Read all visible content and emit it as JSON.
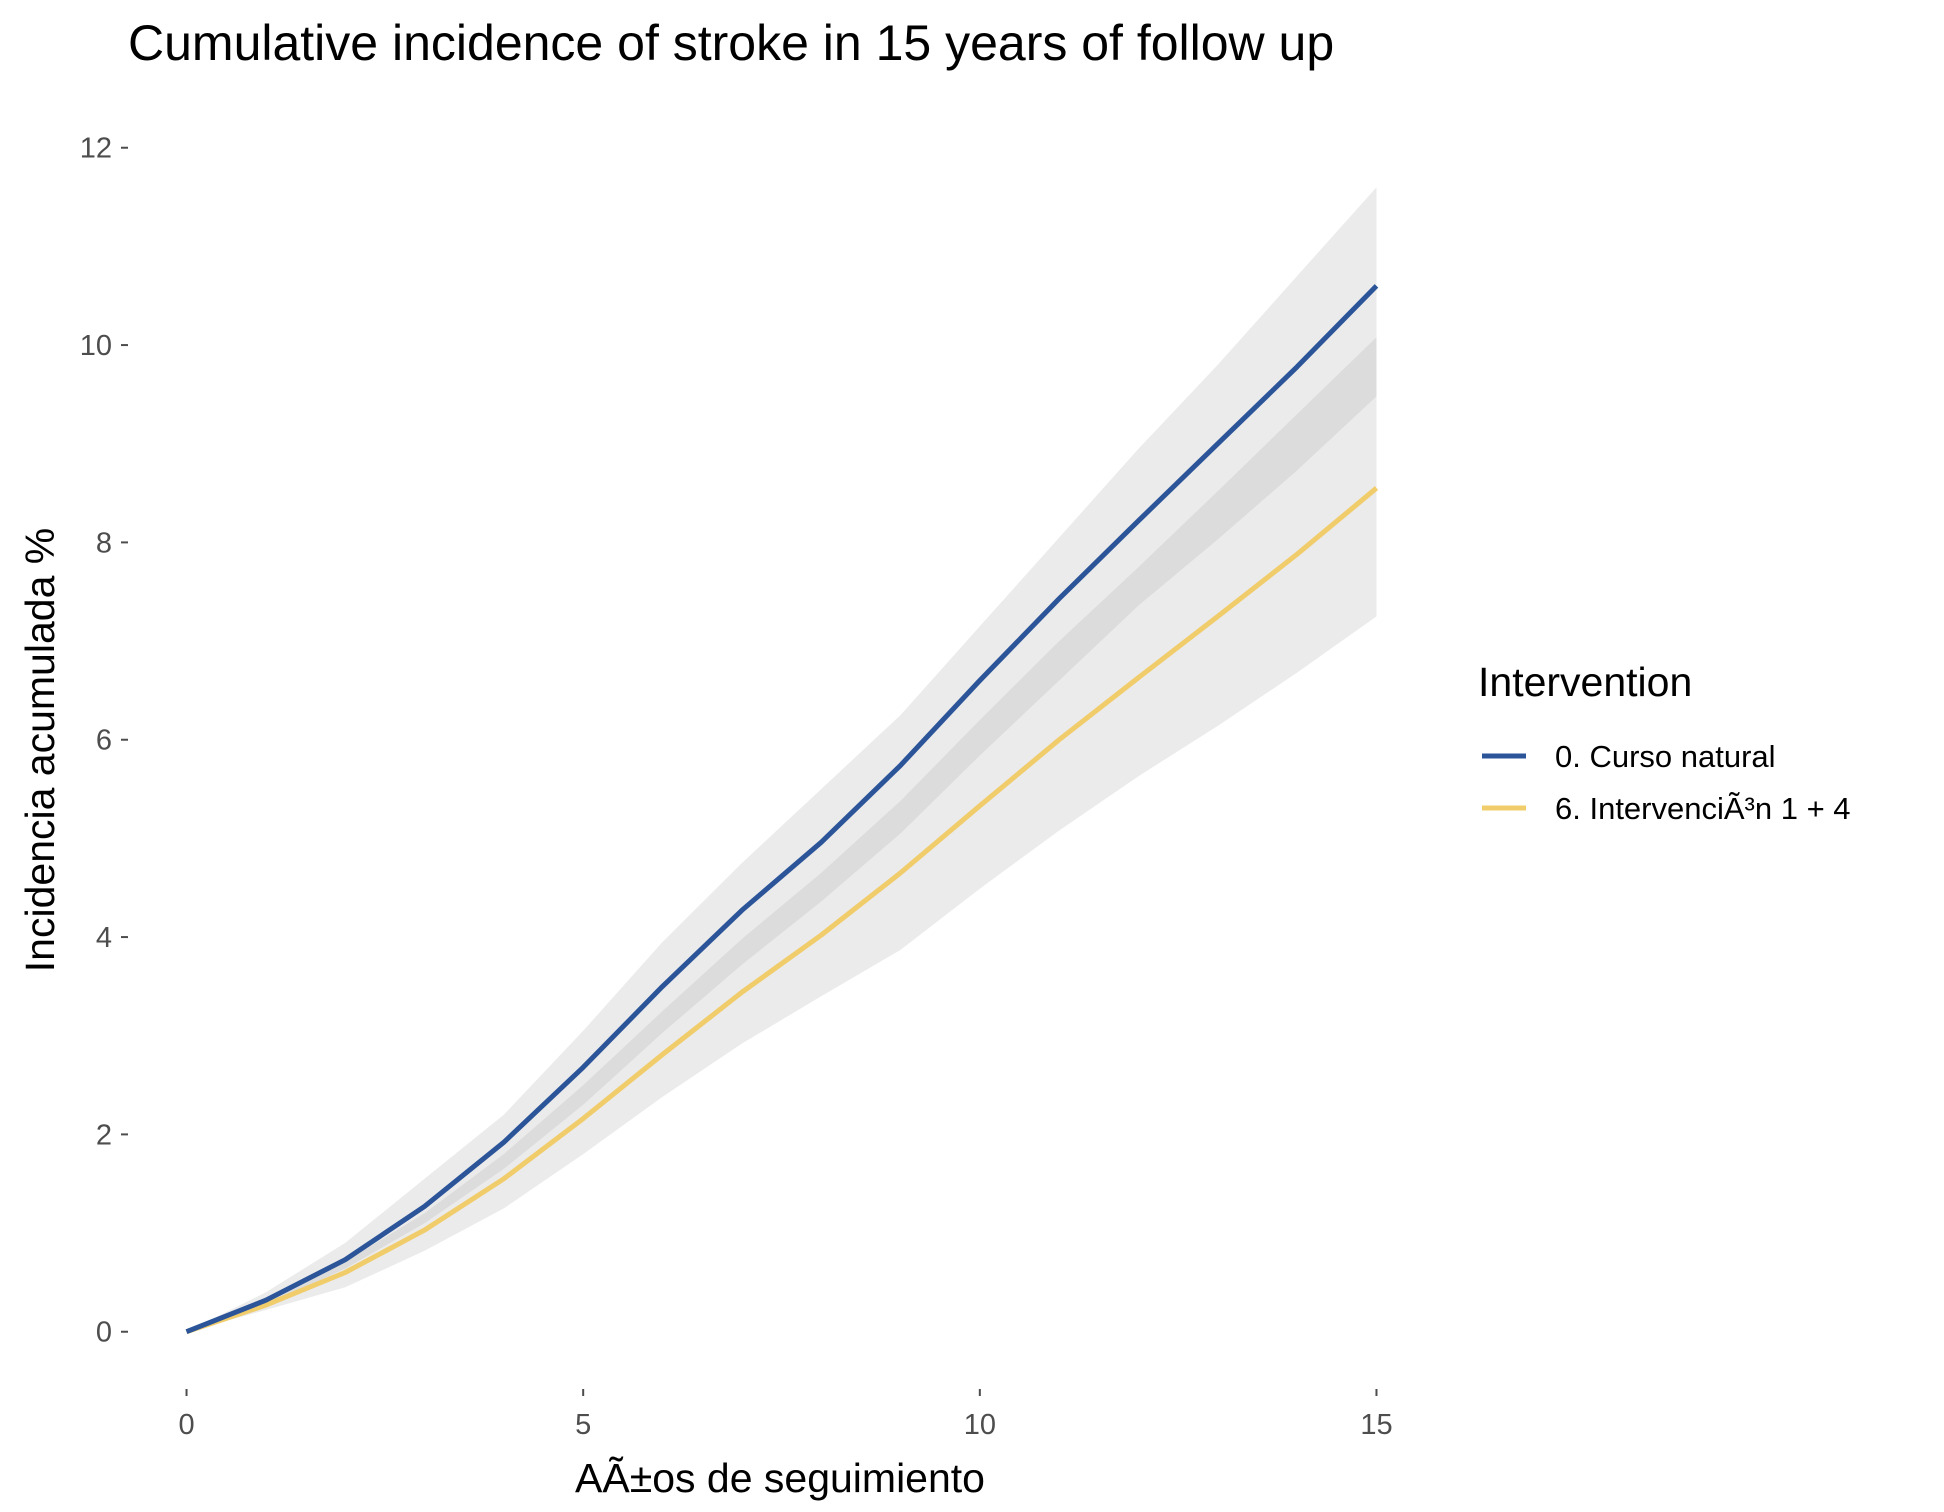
{
  "chart_data": {
    "type": "line",
    "title": "Cumulative incidence of stroke in 15 years of follow up",
    "xlabel": "AÃ±os de seguimiento",
    "ylabel": "Incidencia acumulada %",
    "xlim": [
      -0.7,
      15.7
    ],
    "ylim": [
      -0.55,
      12.2
    ],
    "x_ticks": [
      0,
      5,
      10,
      15
    ],
    "x_tick_labels": [
      "0",
      "5",
      "10",
      "15"
    ],
    "y_ticks": [
      0,
      2,
      4,
      6,
      8,
      10,
      12
    ],
    "y_tick_labels": [
      "0",
      "2",
      "4",
      "6",
      "8",
      "10",
      "12"
    ],
    "grid": false,
    "legend": {
      "title": "Intervention",
      "position": "right"
    },
    "x": [
      0,
      1,
      2,
      3,
      4,
      5,
      6,
      7,
      8,
      9,
      10,
      11,
      12,
      13,
      14,
      15
    ],
    "series": [
      {
        "name": "0. Curso natural",
        "color": "#2b5499",
        "values": [
          0,
          0.32,
          0.73,
          1.27,
          1.92,
          2.68,
          3.5,
          4.27,
          4.96,
          5.74,
          6.6,
          7.43,
          8.22,
          9.0,
          9.78,
          10.6
        ]
      },
      {
        "name": "6. IntervenciÃ³n 1 + 4",
        "color": "#f0cc6b",
        "values": [
          0,
          0.27,
          0.6,
          1.03,
          1.55,
          2.16,
          2.81,
          3.44,
          4.02,
          4.65,
          5.33,
          6.0,
          6.63,
          7.25,
          7.88,
          8.55
        ]
      }
    ],
    "bands": [
      {
        "color": "#ebebeb",
        "lower": [
          0,
          0.22,
          0.45,
          0.82,
          1.25,
          1.8,
          2.38,
          2.92,
          3.4,
          3.87,
          4.49,
          5.08,
          5.63,
          6.14,
          6.68,
          7.25
        ],
        "upper": [
          0,
          0.4,
          0.9,
          1.55,
          2.2,
          3.05,
          3.95,
          4.75,
          5.5,
          6.25,
          7.15,
          8.05,
          8.95,
          9.8,
          10.7,
          11.6
        ]
      },
      {
        "color": "#dcdcdc",
        "lower": [
          0,
          0.27,
          0.64,
          1.1,
          1.65,
          2.3,
          3.03,
          3.72,
          4.36,
          5.05,
          5.84,
          6.6,
          7.36,
          8.03,
          8.73,
          9.48
        ],
        "upper": [
          0,
          0.3,
          0.71,
          1.2,
          1.8,
          2.5,
          3.25,
          3.98,
          4.65,
          5.38,
          6.2,
          7.0,
          7.75,
          8.52,
          9.3,
          10.08
        ]
      }
    ]
  }
}
